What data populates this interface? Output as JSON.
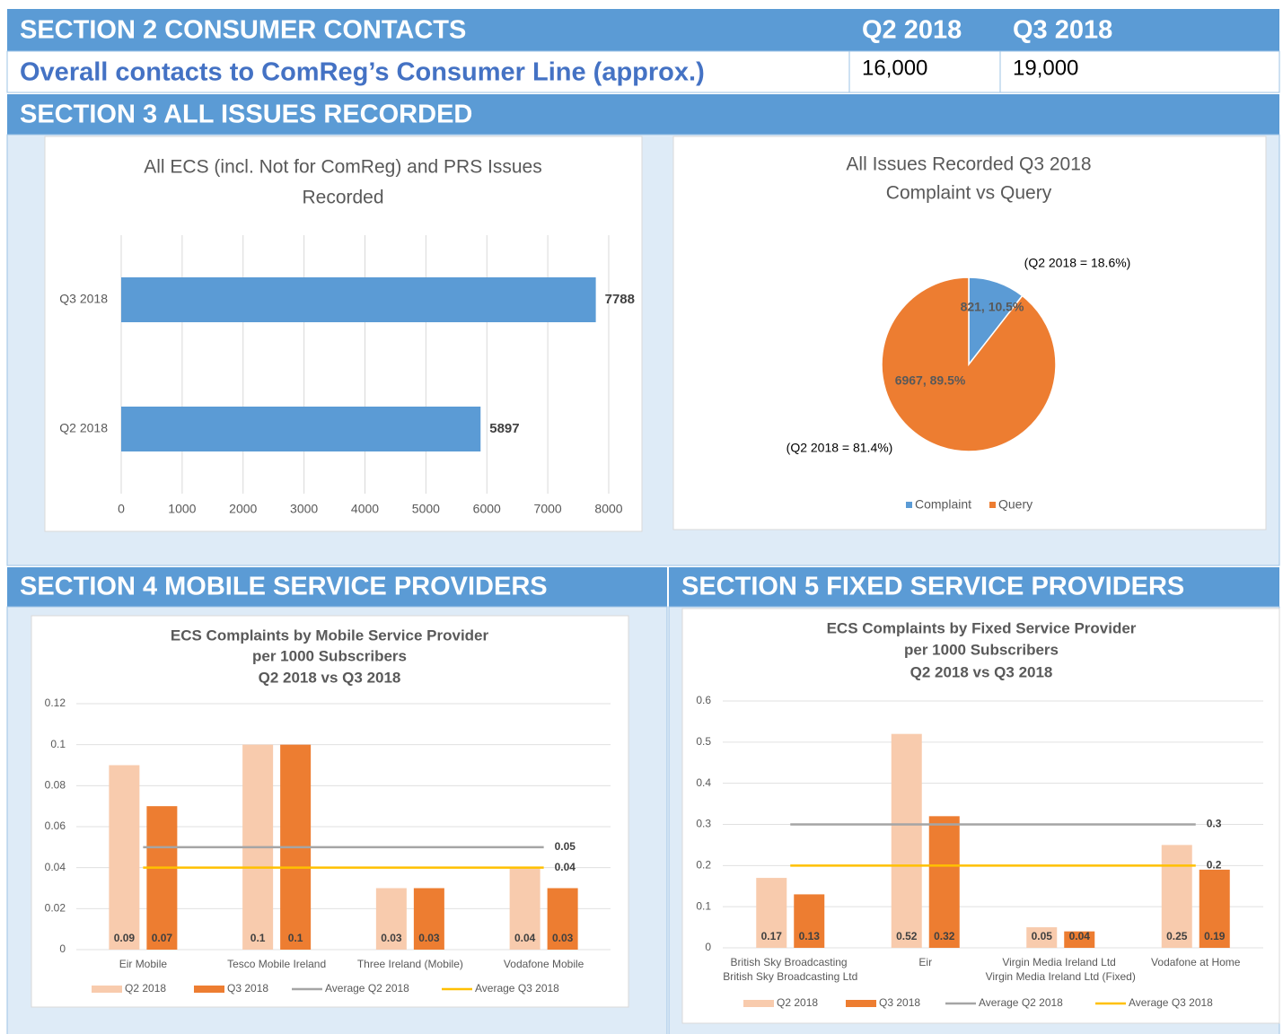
{
  "section_2": {
    "title": "SECTION 2 CONSUMER CONTACTS",
    "columns": [
      "Q2 2018",
      "Q3 2018"
    ],
    "row": {
      "label": "Overall contacts to ComReg’s Consumer Line (approx.)",
      "values": [
        "16,000",
        "19,000"
      ]
    }
  },
  "section_3": {
    "title": "SECTION 3 ALL ISSUES RECORDED",
    "charts": [
      {
        "type": "bar",
        "orientation": "horizontal",
        "title": [
          "All ECS (incl. Not for ComReg) and PRS Issues",
          "Recorded"
        ],
        "categories": [
          "Q3 2018",
          "Q2 2018"
        ],
        "values": [
          7788,
          5897
        ],
        "color": "#5b9bd5",
        "xlim": [
          0,
          8000
        ],
        "xticks": [
          0,
          1000,
          2000,
          3000,
          4000,
          5000,
          6000,
          7000,
          8000
        ],
        "grid": true
      },
      {
        "type": "pie",
        "title": [
          "All Issues Recorded Q3 2018",
          "Complaint vs Query"
        ],
        "categories": [
          "Complaint",
          "Query"
        ],
        "values": [
          821,
          6967
        ],
        "value_labels": [
          "821, 10.5%",
          "6967, 89.5%"
        ],
        "colors": [
          "#5b9bd5",
          "#ed7d31"
        ],
        "annotations": [
          "(Q2 2018 = 18.6%)",
          "(Q2 2018 = 81.4%)"
        ],
        "legend": "bottom"
      }
    ]
  },
  "section_4": {
    "title": "SECTION 4 MOBILE SERVICE PROVIDERS",
    "chart": {
      "type": "bar",
      "title": [
        "ECS Complaints by Mobile Service Provider",
        "per 1000 Subscribers",
        "Q2 2018 vs Q3 2018"
      ],
      "categories": [
        "Eir Mobile",
        "Tesco Mobile Ireland",
        "Three Ireland (Mobile)",
        "Vodafone Mobile"
      ],
      "series": [
        {
          "name": "Q2 2018",
          "type": "bar",
          "color": "#f8cbad",
          "values": [
            0.09,
            0.1,
            0.03,
            0.04
          ]
        },
        {
          "name": "Q3 2018",
          "type": "bar",
          "color": "#ed7d31",
          "values": [
            0.07,
            0.1,
            0.03,
            0.03
          ]
        },
        {
          "name": "Average Q2 2018",
          "type": "line",
          "color": "#a5a5a5",
          "values": [
            0.05,
            0.05,
            0.05,
            0.05
          ]
        },
        {
          "name": "Average Q3 2018",
          "type": "line",
          "color": "#ffc000",
          "values": [
            0.04,
            0.04,
            0.04,
            0.04
          ]
        }
      ],
      "ylim": [
        0,
        0.12
      ],
      "yticks": [
        0,
        0.02,
        0.04,
        0.06,
        0.08,
        0.1,
        0.12
      ],
      "grid": true,
      "legend": "bottom"
    }
  },
  "section_5": {
    "title": "SECTION 5 FIXED SERVICE PROVIDERS",
    "chart": {
      "type": "bar",
      "title": [
        "ECS Complaints by Fixed Service Provider",
        "per 1000 Subscribers",
        "Q2 2018 vs Q3 2018"
      ],
      "categories": [
        "British Sky Broadcasting Ltd",
        "Eir",
        "Virgin Media Ireland Ltd (Fixed)",
        "Vodafone at Home"
      ],
      "series": [
        {
          "name": "Q2 2018",
          "type": "bar",
          "color": "#f8cbad",
          "values": [
            0.17,
            0.52,
            0.05,
            0.25
          ]
        },
        {
          "name": "Q3 2018",
          "type": "bar",
          "color": "#ed7d31",
          "values": [
            0.13,
            0.32,
            0.04,
            0.19
          ]
        },
        {
          "name": "Average Q2 2018",
          "type": "line",
          "color": "#a5a5a5",
          "values": [
            0.3,
            0.3,
            0.3,
            0.3
          ]
        },
        {
          "name": "Average Q3 2018",
          "type": "line",
          "color": "#ffc000",
          "values": [
            0.2,
            0.2,
            0.2,
            0.2
          ]
        }
      ],
      "ylim": [
        0,
        0.6
      ],
      "yticks": [
        0,
        0.1,
        0.2,
        0.3,
        0.4,
        0.5,
        0.6
      ],
      "grid": true,
      "legend": "bottom"
    }
  }
}
